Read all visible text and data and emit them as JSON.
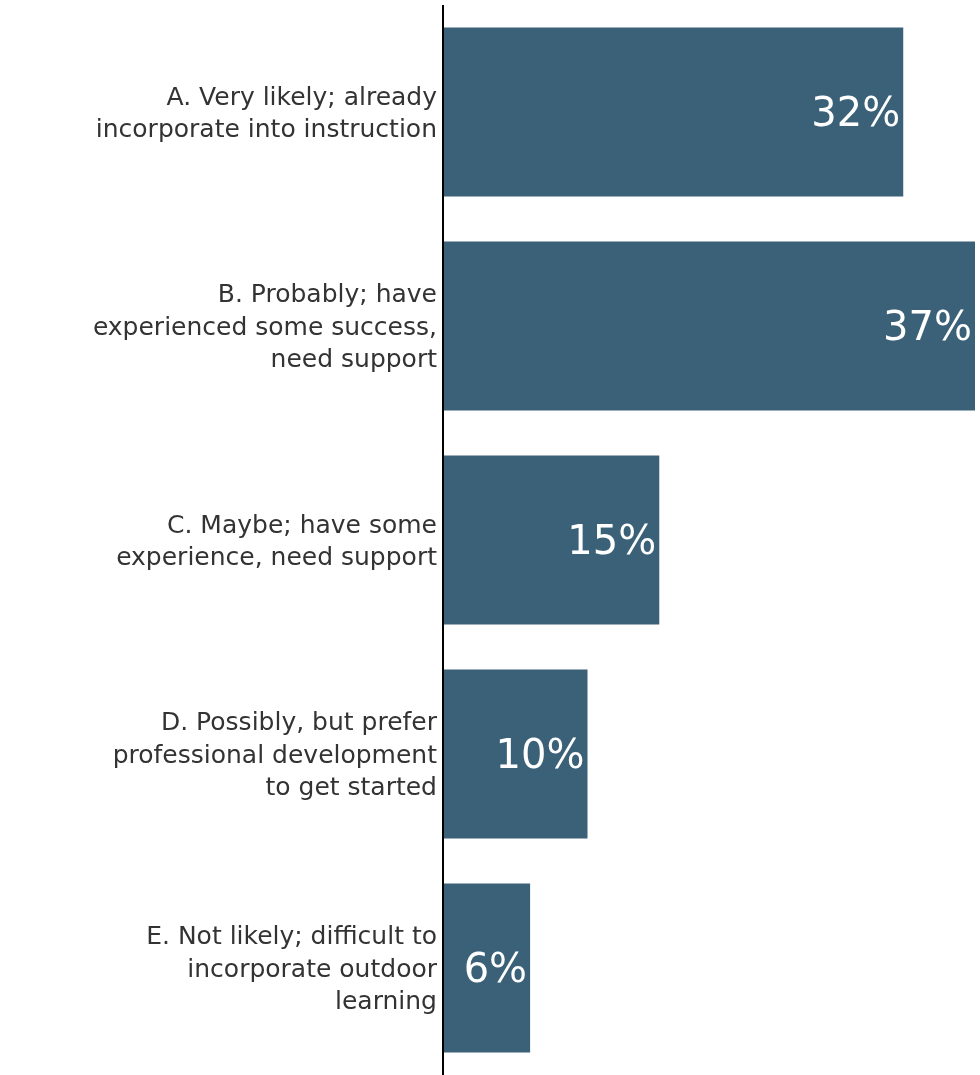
{
  "chart_data": {
    "type": "bar",
    "orientation": "horizontal",
    "categories": [
      "A. Very likely; already\nincorporate into instruction",
      "B. Probably; have\nexperienced some success,\nneed support",
      "C. Maybe; have some\nexperience, need support",
      "D. Possibly, but prefer\nprofessional development\nto get started",
      "E. Not likely; difficult to\nincorporate outdoor\nlearning"
    ],
    "values": [
      32,
      37,
      15,
      10,
      6
    ],
    "value_labels": [
      "32%",
      "37%",
      "15%",
      "10%",
      "6%"
    ],
    "color": "#3a6178"
  }
}
